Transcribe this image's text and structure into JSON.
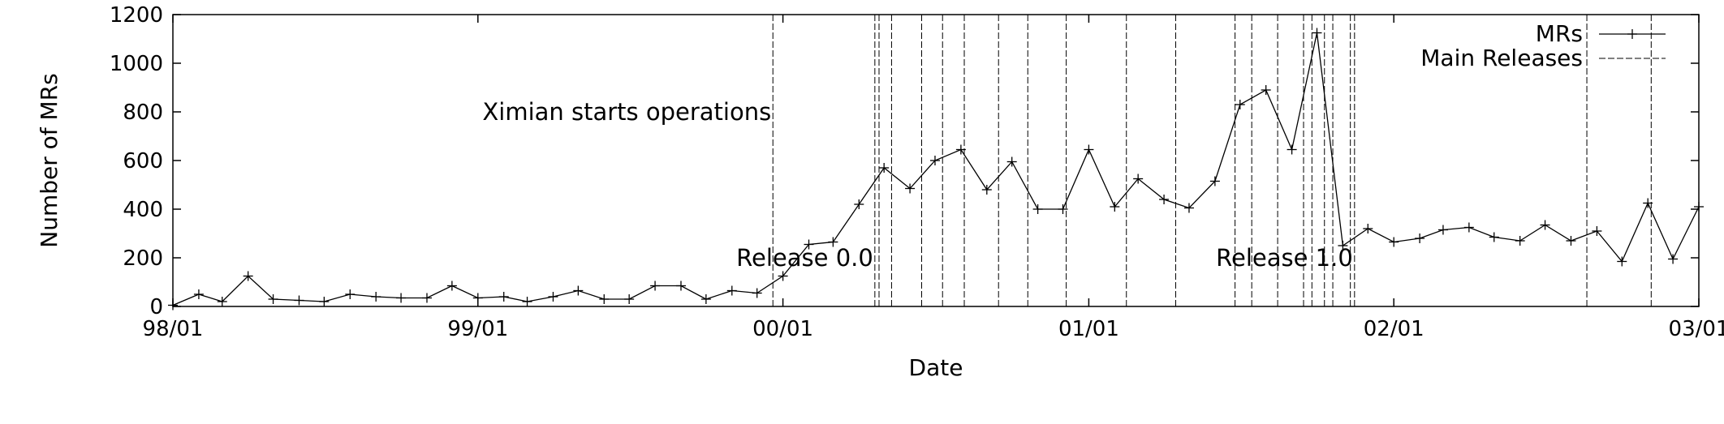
{
  "chart_data": {
    "type": "line",
    "xlabel": "Date",
    "ylabel": "Number of MRs",
    "xlim": [
      "1998-01-01",
      "2003-01-01"
    ],
    "ylim": [
      0,
      1200
    ],
    "x_ticks": [
      {
        "date": "1998-01-01",
        "label": "98/01"
      },
      {
        "date": "1999-01-01",
        "label": "99/01"
      },
      {
        "date": "2000-01-01",
        "label": "00/01"
      },
      {
        "date": "2001-01-01",
        "label": "01/01"
      },
      {
        "date": "2002-01-01",
        "label": "02/01"
      },
      {
        "date": "2003-01-01",
        "label": "03/01"
      }
    ],
    "y_ticks": [
      0,
      200,
      400,
      600,
      800,
      1000,
      1200
    ],
    "grid": false,
    "legend": {
      "placement": "top-right",
      "entries": [
        {
          "label": "MRs",
          "style": "solid-with-markers"
        },
        {
          "label": "Main Releases",
          "style": "dashed"
        }
      ]
    },
    "series": [
      {
        "name": "MRs",
        "marker": "+",
        "x": [
          "1998-01-01",
          "1998-02-01",
          "1998-03-01",
          "1998-04-01",
          "1998-05-01",
          "1998-06-01",
          "1998-07-01",
          "1998-08-01",
          "1998-09-01",
          "1998-10-01",
          "1998-11-01",
          "1998-12-01",
          "1999-01-01",
          "1999-02-01",
          "1999-03-01",
          "1999-04-01",
          "1999-05-01",
          "1999-06-01",
          "1999-07-01",
          "1999-08-01",
          "1999-09-01",
          "1999-10-01",
          "1999-11-01",
          "1999-12-01",
          "2000-01-01",
          "2000-02-01",
          "2000-03-01",
          "2000-04-01",
          "2000-05-01",
          "2000-06-01",
          "2000-07-01",
          "2000-08-01",
          "2000-09-01",
          "2000-10-01",
          "2000-11-01",
          "2000-12-01",
          "2001-01-01",
          "2001-02-01",
          "2001-03-01",
          "2001-04-01",
          "2001-05-01",
          "2001-06-01",
          "2001-07-01",
          "2001-08-01",
          "2001-09-01",
          "2001-10-01",
          "2001-11-01",
          "2001-12-01",
          "2002-01-01",
          "2002-02-01",
          "2002-03-01",
          "2002-04-01",
          "2002-05-01",
          "2002-06-01",
          "2002-07-01",
          "2002-08-01",
          "2002-09-01",
          "2002-10-01",
          "2002-11-01",
          "2002-12-01",
          "2003-01-01"
        ],
        "values": [
          5,
          50,
          20,
          125,
          30,
          25,
          20,
          50,
          40,
          35,
          35,
          85,
          35,
          40,
          20,
          40,
          65,
          30,
          30,
          85,
          85,
          30,
          65,
          55,
          125,
          255,
          265,
          420,
          570,
          485,
          600,
          645,
          480,
          595,
          400,
          400,
          645,
          410,
          525,
          440,
          405,
          515,
          830,
          890,
          645,
          1125,
          250,
          320,
          265,
          280,
          315,
          325,
          285,
          270,
          335,
          270,
          310,
          185,
          425,
          195,
          410
        ]
      },
      {
        "name": "Main Releases",
        "style": "dashed",
        "dates": [
          "1999-12-20",
          "2000-04-20",
          "2000-04-25",
          "2000-05-10",
          "2000-06-15",
          "2000-07-10",
          "2000-08-05",
          "2000-09-15",
          "2000-10-20",
          "2000-12-05",
          "2001-02-15",
          "2001-04-15",
          "2001-06-25",
          "2001-07-15",
          "2001-08-15",
          "2001-09-15",
          "2001-09-25",
          "2001-10-10",
          "2001-10-20",
          "2001-11-10",
          "2001-11-15",
          "2002-08-20",
          "2002-11-05"
        ]
      }
    ],
    "annotations": [
      {
        "text": "Ximian starts operations",
        "date": "1999-12-20",
        "value": 800,
        "anchor": "end"
      },
      {
        "text": "Release 0.0",
        "date": "2000-04-20",
        "value": 200,
        "anchor": "end"
      },
      {
        "text": "Release 1.0",
        "date": "2001-11-15",
        "value": 200,
        "anchor": "end"
      }
    ]
  }
}
